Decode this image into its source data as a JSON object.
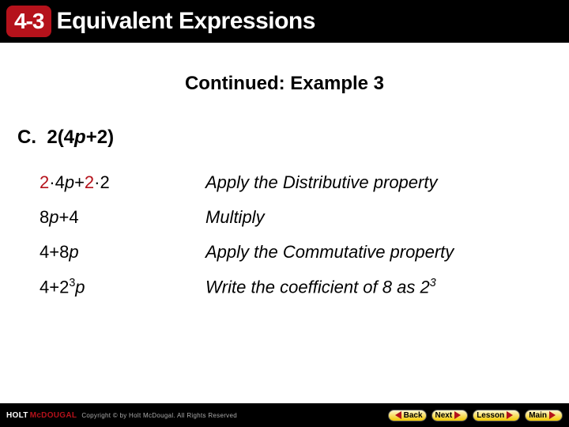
{
  "header": {
    "badge": "4-3",
    "title": "Equivalent Expressions"
  },
  "subtitle": "Continued: Example 3",
  "problem": {
    "label": "C.",
    "expr_prefix": "2(4",
    "expr_var": "p",
    "expr_suffix": "+2)"
  },
  "steps": [
    {
      "parts": [
        {
          "text": "2",
          "red": true
        },
        {
          "text": "·4",
          "red": false
        },
        {
          "text": "p",
          "red": false,
          "var": true
        },
        {
          "text": "+",
          "red": false
        },
        {
          "text": "2",
          "red": true
        },
        {
          "text": "·2",
          "red": false
        }
      ],
      "explanation": "Apply the Distributive property"
    },
    {
      "parts": [
        {
          "text": "8",
          "red": false
        },
        {
          "text": "p",
          "red": false,
          "var": true
        },
        {
          "text": "+4",
          "red": false
        }
      ],
      "explanation": "Multiply"
    },
    {
      "parts": [
        {
          "text": "4+8",
          "red": false
        },
        {
          "text": "p",
          "red": false,
          "var": true
        }
      ],
      "explanation": "Apply the Commutative property"
    },
    {
      "parts": [
        {
          "text": "4+2",
          "red": false
        },
        {
          "text": "3",
          "red": false,
          "sup": true
        },
        {
          "text": "p",
          "red": false,
          "var": true
        }
      ],
      "explanation_parts": [
        {
          "text": "Write the coefficient of 8 as 2"
        },
        {
          "text": "3",
          "sup": true
        }
      ]
    }
  ],
  "footer": {
    "logo_holt": "HOLT",
    "logo_mcd": "McDOUGAL",
    "rights": "Copyright © by Holt McDougal. All Rights Reserved",
    "back": "Back",
    "next": "Next",
    "lesson": "Lesson",
    "main": "Main"
  },
  "colors": {
    "brand_red": "#b5121b",
    "black": "#000000",
    "white": "#ffffff",
    "btn_top": "#fff7d0",
    "btn_bottom": "#f2c800"
  }
}
